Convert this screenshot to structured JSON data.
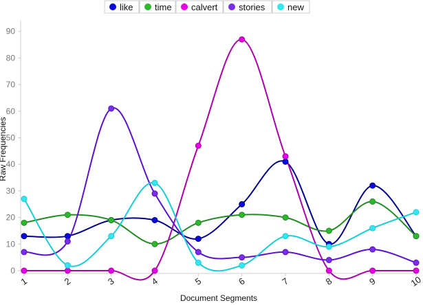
{
  "chart_data": {
    "type": "line",
    "xlabel": "Document Segments",
    "ylabel": "Raw Frequencies",
    "x": [
      1,
      2,
      3,
      4,
      5,
      6,
      7,
      8,
      9,
      10
    ],
    "xticks": [
      "1",
      "2",
      "3",
      "4",
      "5",
      "6",
      "7",
      "8",
      "9",
      "10"
    ],
    "yticks": [
      "0",
      "10",
      "20",
      "30",
      "40",
      "50",
      "60",
      "70",
      "80",
      "90"
    ],
    "ylim": [
      0,
      92
    ],
    "xlim": [
      1,
      10
    ],
    "smooth": true,
    "grid": false,
    "legend_position": "top-center",
    "series": [
      {
        "name": "like",
        "color": "#0a0adb",
        "line_color": "#00008b",
        "values": [
          13,
          13,
          19,
          19,
          12,
          25,
          41,
          10,
          32,
          13
        ]
      },
      {
        "name": "time",
        "color": "#2eb82e",
        "line_color": "#228b22",
        "values": [
          18,
          21,
          19,
          10,
          18,
          21,
          20,
          15,
          26,
          13
        ]
      },
      {
        "name": "calvert",
        "color": "#e600e6",
        "line_color": "#aa00aa",
        "values": [
          0,
          0,
          0,
          0,
          47,
          87,
          43,
          0,
          0,
          0
        ]
      },
      {
        "name": "stories",
        "color": "#7a2ee6",
        "line_color": "#5a10cc",
        "values": [
          7,
          11,
          61,
          29,
          7,
          5,
          7,
          4,
          8,
          3
        ]
      },
      {
        "name": "new",
        "color": "#33e6f0",
        "line_color": "#18ccd6",
        "values": [
          27,
          2,
          13,
          33,
          3,
          2,
          13,
          9,
          16,
          22
        ]
      }
    ]
  }
}
